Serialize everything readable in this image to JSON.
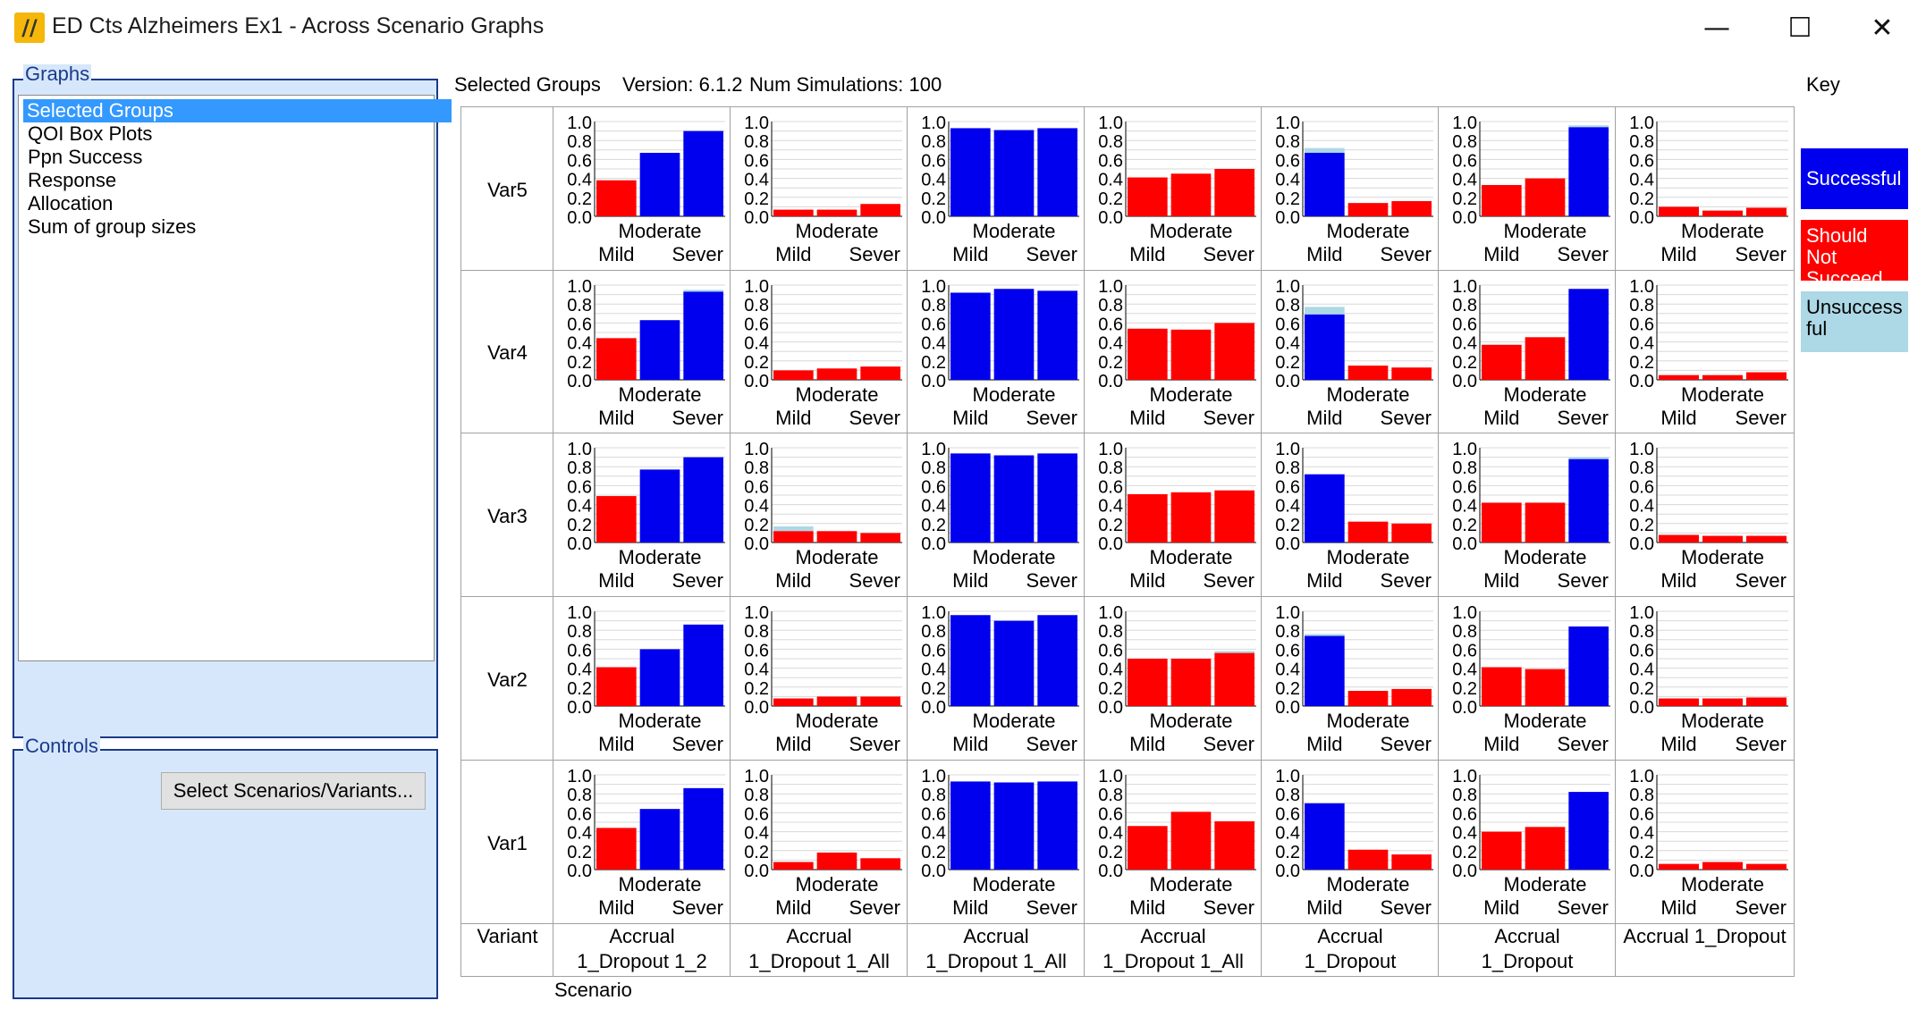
{
  "window": {
    "title": "ED Cts Alzheimers Ex1 - Across Scenario Graphs",
    "controls": {
      "minimize": "—",
      "maximize": "☐",
      "close": "✕"
    }
  },
  "graphs_panel": {
    "legend": "Graphs",
    "items": [
      "Selected Groups",
      "QOI Box Plots",
      "Ppn Success",
      "Response",
      "Allocation",
      "Sum of group sizes"
    ],
    "selected_index": 0
  },
  "controls_panel": {
    "legend": "Controls",
    "select_button": "Select Scenarios/Variants..."
  },
  "header": {
    "graph_name": "Selected Groups",
    "version": "Version: 6.1.2",
    "num_simulations": "Num Simulations: 100",
    "key_label": "Key"
  },
  "key": [
    {
      "label": "Successful",
      "color": "#0000ee",
      "text_color": "#ffffff"
    },
    {
      "label": "Should Not Succeed",
      "color": "#ff0000",
      "text_color": "#ffffff"
    },
    {
      "label": "Unsuccess ful",
      "color": "#add8e6",
      "text_color": "#000000"
    }
  ],
  "grid_labels": {
    "variant_header": "Variant",
    "scenario_label": "Scenario",
    "scenarios": [
      "Accrual 1_Dropout 1_2",
      "Accrual 1_Dropout 1_All",
      "Accrual 1_Dropout 1_All",
      "Accrual 1_Dropout 1_All",
      "Accrual 1_Dropout",
      "Accrual 1_Dropout",
      "Accrual 1_Dropout"
    ],
    "variants": [
      "Var5",
      "Var4",
      "Var3",
      "Var2",
      "Var1"
    ]
  },
  "chart_data": {
    "type": "bar",
    "categories": [
      "Mild",
      "Moderate",
      "Sever"
    ],
    "y_ticks": [
      "1.0",
      "0.8",
      "0.6",
      "0.4",
      "0.2",
      "0.0"
    ],
    "ylim": [
      0,
      1
    ],
    "grid": true,
    "colors": {
      "successful": "#0000ee",
      "should_not_succeed": "#ff0000",
      "unsuccessful": "#add8e6"
    },
    "rows": [
      {
        "variant": "Var5",
        "cells": [
          [
            [
              "r",
              0.38,
              0.38
            ],
            [
              "b",
              0.67,
              0.67
            ],
            [
              "b",
              0.9,
              0.9
            ]
          ],
          [
            [
              "r",
              0.07,
              0.07
            ],
            [
              "r",
              0.07,
              0.07
            ],
            [
              "r",
              0.13,
              0.13
            ]
          ],
          [
            [
              "b",
              0.93,
              0.93
            ],
            [
              "b",
              0.91,
              0.91
            ],
            [
              "b",
              0.93,
              0.93
            ]
          ],
          [
            [
              "r",
              0.41,
              0.41
            ],
            [
              "r",
              0.45,
              0.45
            ],
            [
              "r",
              0.5,
              0.5
            ]
          ],
          [
            [
              "b",
              0.67,
              0.72
            ],
            [
              "r",
              0.14,
              0.14
            ],
            [
              "r",
              0.16,
              0.16
            ]
          ],
          [
            [
              "r",
              0.33,
              0.33
            ],
            [
              "r",
              0.4,
              0.4
            ],
            [
              "b",
              0.94,
              0.96
            ]
          ],
          [
            [
              "r",
              0.1,
              0.1
            ],
            [
              "r",
              0.06,
              0.06
            ],
            [
              "r",
              0.09,
              0.09
            ]
          ]
        ]
      },
      {
        "variant": "Var4",
        "cells": [
          [
            [
              "r",
              0.44,
              0.44
            ],
            [
              "b",
              0.63,
              0.63
            ],
            [
              "b",
              0.93,
              0.95
            ]
          ],
          [
            [
              "r",
              0.1,
              0.1
            ],
            [
              "r",
              0.12,
              0.12
            ],
            [
              "r",
              0.14,
              0.14
            ]
          ],
          [
            [
              "b",
              0.92,
              0.92
            ],
            [
              "b",
              0.96,
              0.96
            ],
            [
              "b",
              0.94,
              0.94
            ]
          ],
          [
            [
              "r",
              0.54,
              0.54
            ],
            [
              "r",
              0.53,
              0.53
            ],
            [
              "r",
              0.6,
              0.6
            ]
          ],
          [
            [
              "b",
              0.69,
              0.77
            ],
            [
              "r",
              0.15,
              0.15
            ],
            [
              "r",
              0.13,
              0.13
            ]
          ],
          [
            [
              "r",
              0.37,
              0.37
            ],
            [
              "r",
              0.45,
              0.45
            ],
            [
              "b",
              0.96,
              0.96
            ]
          ],
          [
            [
              "r",
              0.05,
              0.05
            ],
            [
              "r",
              0.05,
              0.05
            ],
            [
              "r",
              0.08,
              0.08
            ]
          ]
        ]
      },
      {
        "variant": "Var3",
        "cells": [
          [
            [
              "r",
              0.49,
              0.49
            ],
            [
              "b",
              0.77,
              0.77
            ],
            [
              "b",
              0.9,
              0.9
            ]
          ],
          [
            [
              "r",
              0.12,
              0.17
            ],
            [
              "r",
              0.12,
              0.12
            ],
            [
              "r",
              0.1,
              0.1
            ]
          ],
          [
            [
              "b",
              0.94,
              0.94
            ],
            [
              "b",
              0.92,
              0.92
            ],
            [
              "b",
              0.94,
              0.94
            ]
          ],
          [
            [
              "r",
              0.51,
              0.51
            ],
            [
              "r",
              0.53,
              0.53
            ],
            [
              "r",
              0.55,
              0.55
            ]
          ],
          [
            [
              "b",
              0.72,
              0.72
            ],
            [
              "r",
              0.22,
              0.22
            ],
            [
              "r",
              0.2,
              0.2
            ]
          ],
          [
            [
              "r",
              0.42,
              0.42
            ],
            [
              "r",
              0.42,
              0.42
            ],
            [
              "b",
              0.88,
              0.9
            ]
          ],
          [
            [
              "r",
              0.08,
              0.08
            ],
            [
              "r",
              0.07,
              0.07
            ],
            [
              "r",
              0.07,
              0.07
            ]
          ]
        ]
      },
      {
        "variant": "Var2",
        "cells": [
          [
            [
              "r",
              0.41,
              0.41
            ],
            [
              "b",
              0.6,
              0.6
            ],
            [
              "b",
              0.86,
              0.86
            ]
          ],
          [
            [
              "r",
              0.08,
              0.08
            ],
            [
              "r",
              0.1,
              0.1
            ],
            [
              "r",
              0.1,
              0.1
            ]
          ],
          [
            [
              "b",
              0.96,
              0.96
            ],
            [
              "b",
              0.9,
              0.9
            ],
            [
              "b",
              0.96,
              0.96
            ]
          ],
          [
            [
              "r",
              0.5,
              0.5
            ],
            [
              "r",
              0.5,
              0.5
            ],
            [
              "r",
              0.56,
              0.58
            ]
          ],
          [
            [
              "b",
              0.74,
              0.76
            ],
            [
              "r",
              0.16,
              0.16
            ],
            [
              "r",
              0.18,
              0.18
            ]
          ],
          [
            [
              "r",
              0.41,
              0.41
            ],
            [
              "r",
              0.39,
              0.39
            ],
            [
              "b",
              0.84,
              0.84
            ]
          ],
          [
            [
              "r",
              0.08,
              0.08
            ],
            [
              "r",
              0.08,
              0.08
            ],
            [
              "r",
              0.09,
              0.09
            ]
          ]
        ]
      },
      {
        "variant": "Var1",
        "cells": [
          [
            [
              "r",
              0.44,
              0.44
            ],
            [
              "b",
              0.64,
              0.64
            ],
            [
              "b",
              0.86,
              0.86
            ]
          ],
          [
            [
              "r",
              0.08,
              0.08
            ],
            [
              "r",
              0.18,
              0.18
            ],
            [
              "r",
              0.12,
              0.12
            ]
          ],
          [
            [
              "b",
              0.93,
              0.93
            ],
            [
              "b",
              0.92,
              0.92
            ],
            [
              "b",
              0.93,
              0.93
            ]
          ],
          [
            [
              "r",
              0.46,
              0.46
            ],
            [
              "r",
              0.61,
              0.61
            ],
            [
              "r",
              0.51,
              0.51
            ]
          ],
          [
            [
              "b",
              0.7,
              0.7
            ],
            [
              "r",
              0.21,
              0.21
            ],
            [
              "r",
              0.16,
              0.16
            ]
          ],
          [
            [
              "r",
              0.4,
              0.4
            ],
            [
              "r",
              0.45,
              0.45
            ],
            [
              "b",
              0.82,
              0.82
            ]
          ],
          [
            [
              "r",
              0.06,
              0.06
            ],
            [
              "r",
              0.08,
              0.08
            ],
            [
              "r",
              0.06,
              0.06
            ]
          ]
        ]
      }
    ]
  }
}
